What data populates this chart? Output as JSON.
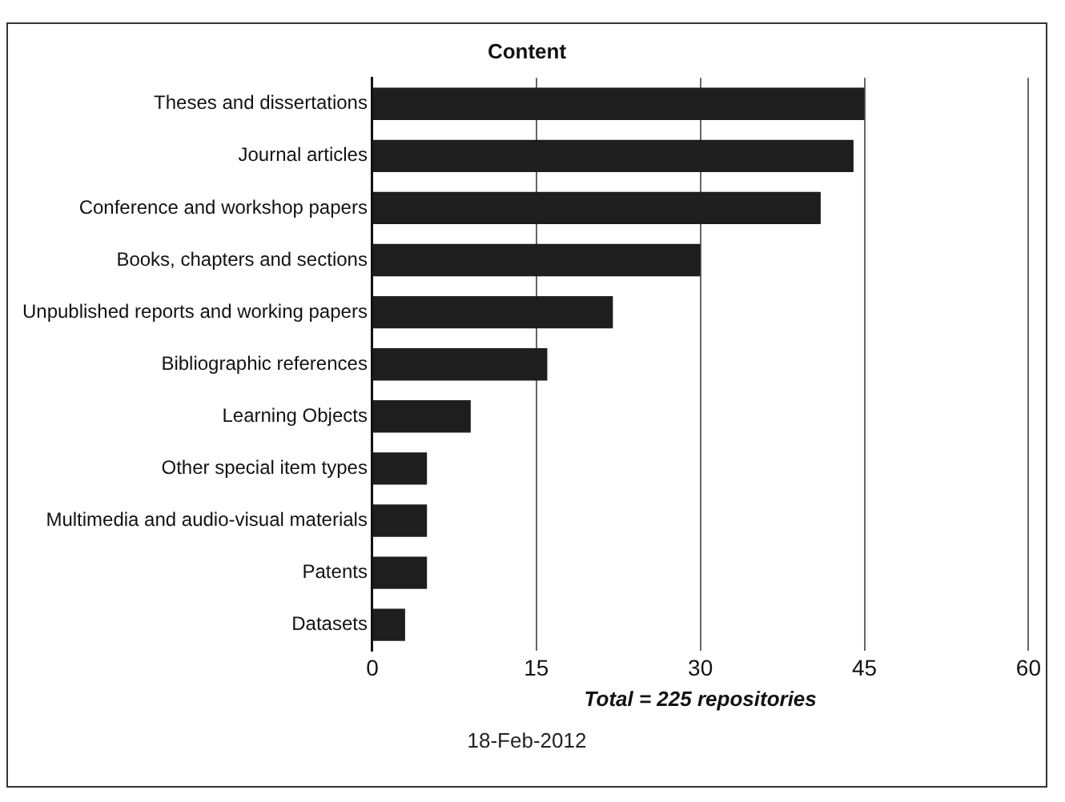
{
  "chart_data": {
    "type": "bar",
    "orientation": "horizontal",
    "title": "Content",
    "categories": [
      "Theses and dissertations",
      "Journal articles",
      "Conference and workshop papers",
      "Books, chapters and sections",
      "Unpublished reports and working papers",
      "Bibliographic references",
      "Learning Objects",
      "Other special item types",
      "Multimedia and audio-visual materials",
      "Patents",
      "Datasets"
    ],
    "values": [
      45,
      44,
      41,
      30,
      22,
      16,
      9,
      5,
      5,
      5,
      3
    ],
    "color": "#1e1e1e",
    "xlim": [
      0,
      60
    ],
    "xticks": [
      0,
      15,
      30,
      45,
      60
    ],
    "xlabel": "Total = 225 repositories",
    "grid": "x",
    "legend": false,
    "annotations": [
      "18-Feb-2012"
    ]
  }
}
